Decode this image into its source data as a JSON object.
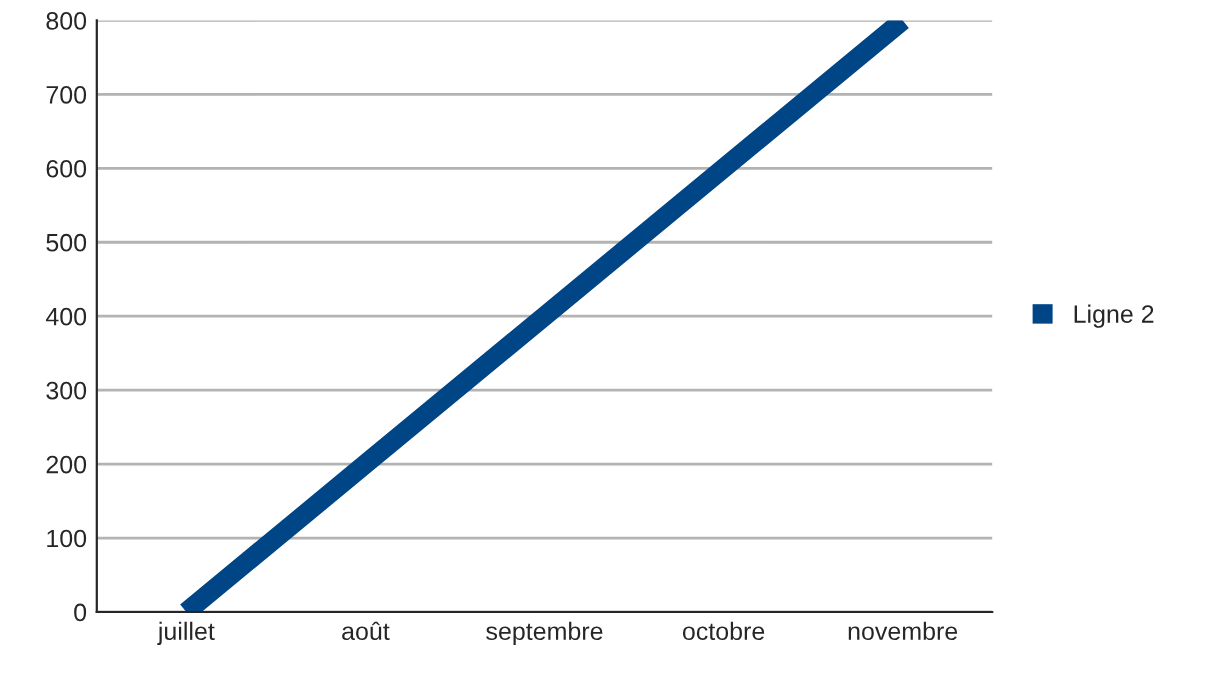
{
  "chart_data": {
    "type": "line",
    "categories": [
      "juillet",
      "août",
      "septembre",
      "octobre",
      "novembre"
    ],
    "series": [
      {
        "name": "Ligne 2",
        "color": "#004586",
        "values": [
          0,
          200,
          400,
          600,
          800
        ]
      }
    ],
    "ylim": [
      0,
      800
    ],
    "yticks": [
      0,
      100,
      200,
      300,
      400,
      500,
      600,
      700,
      800
    ],
    "grid": "y",
    "legend": "right",
    "marker": "none",
    "line_style": "solid"
  }
}
